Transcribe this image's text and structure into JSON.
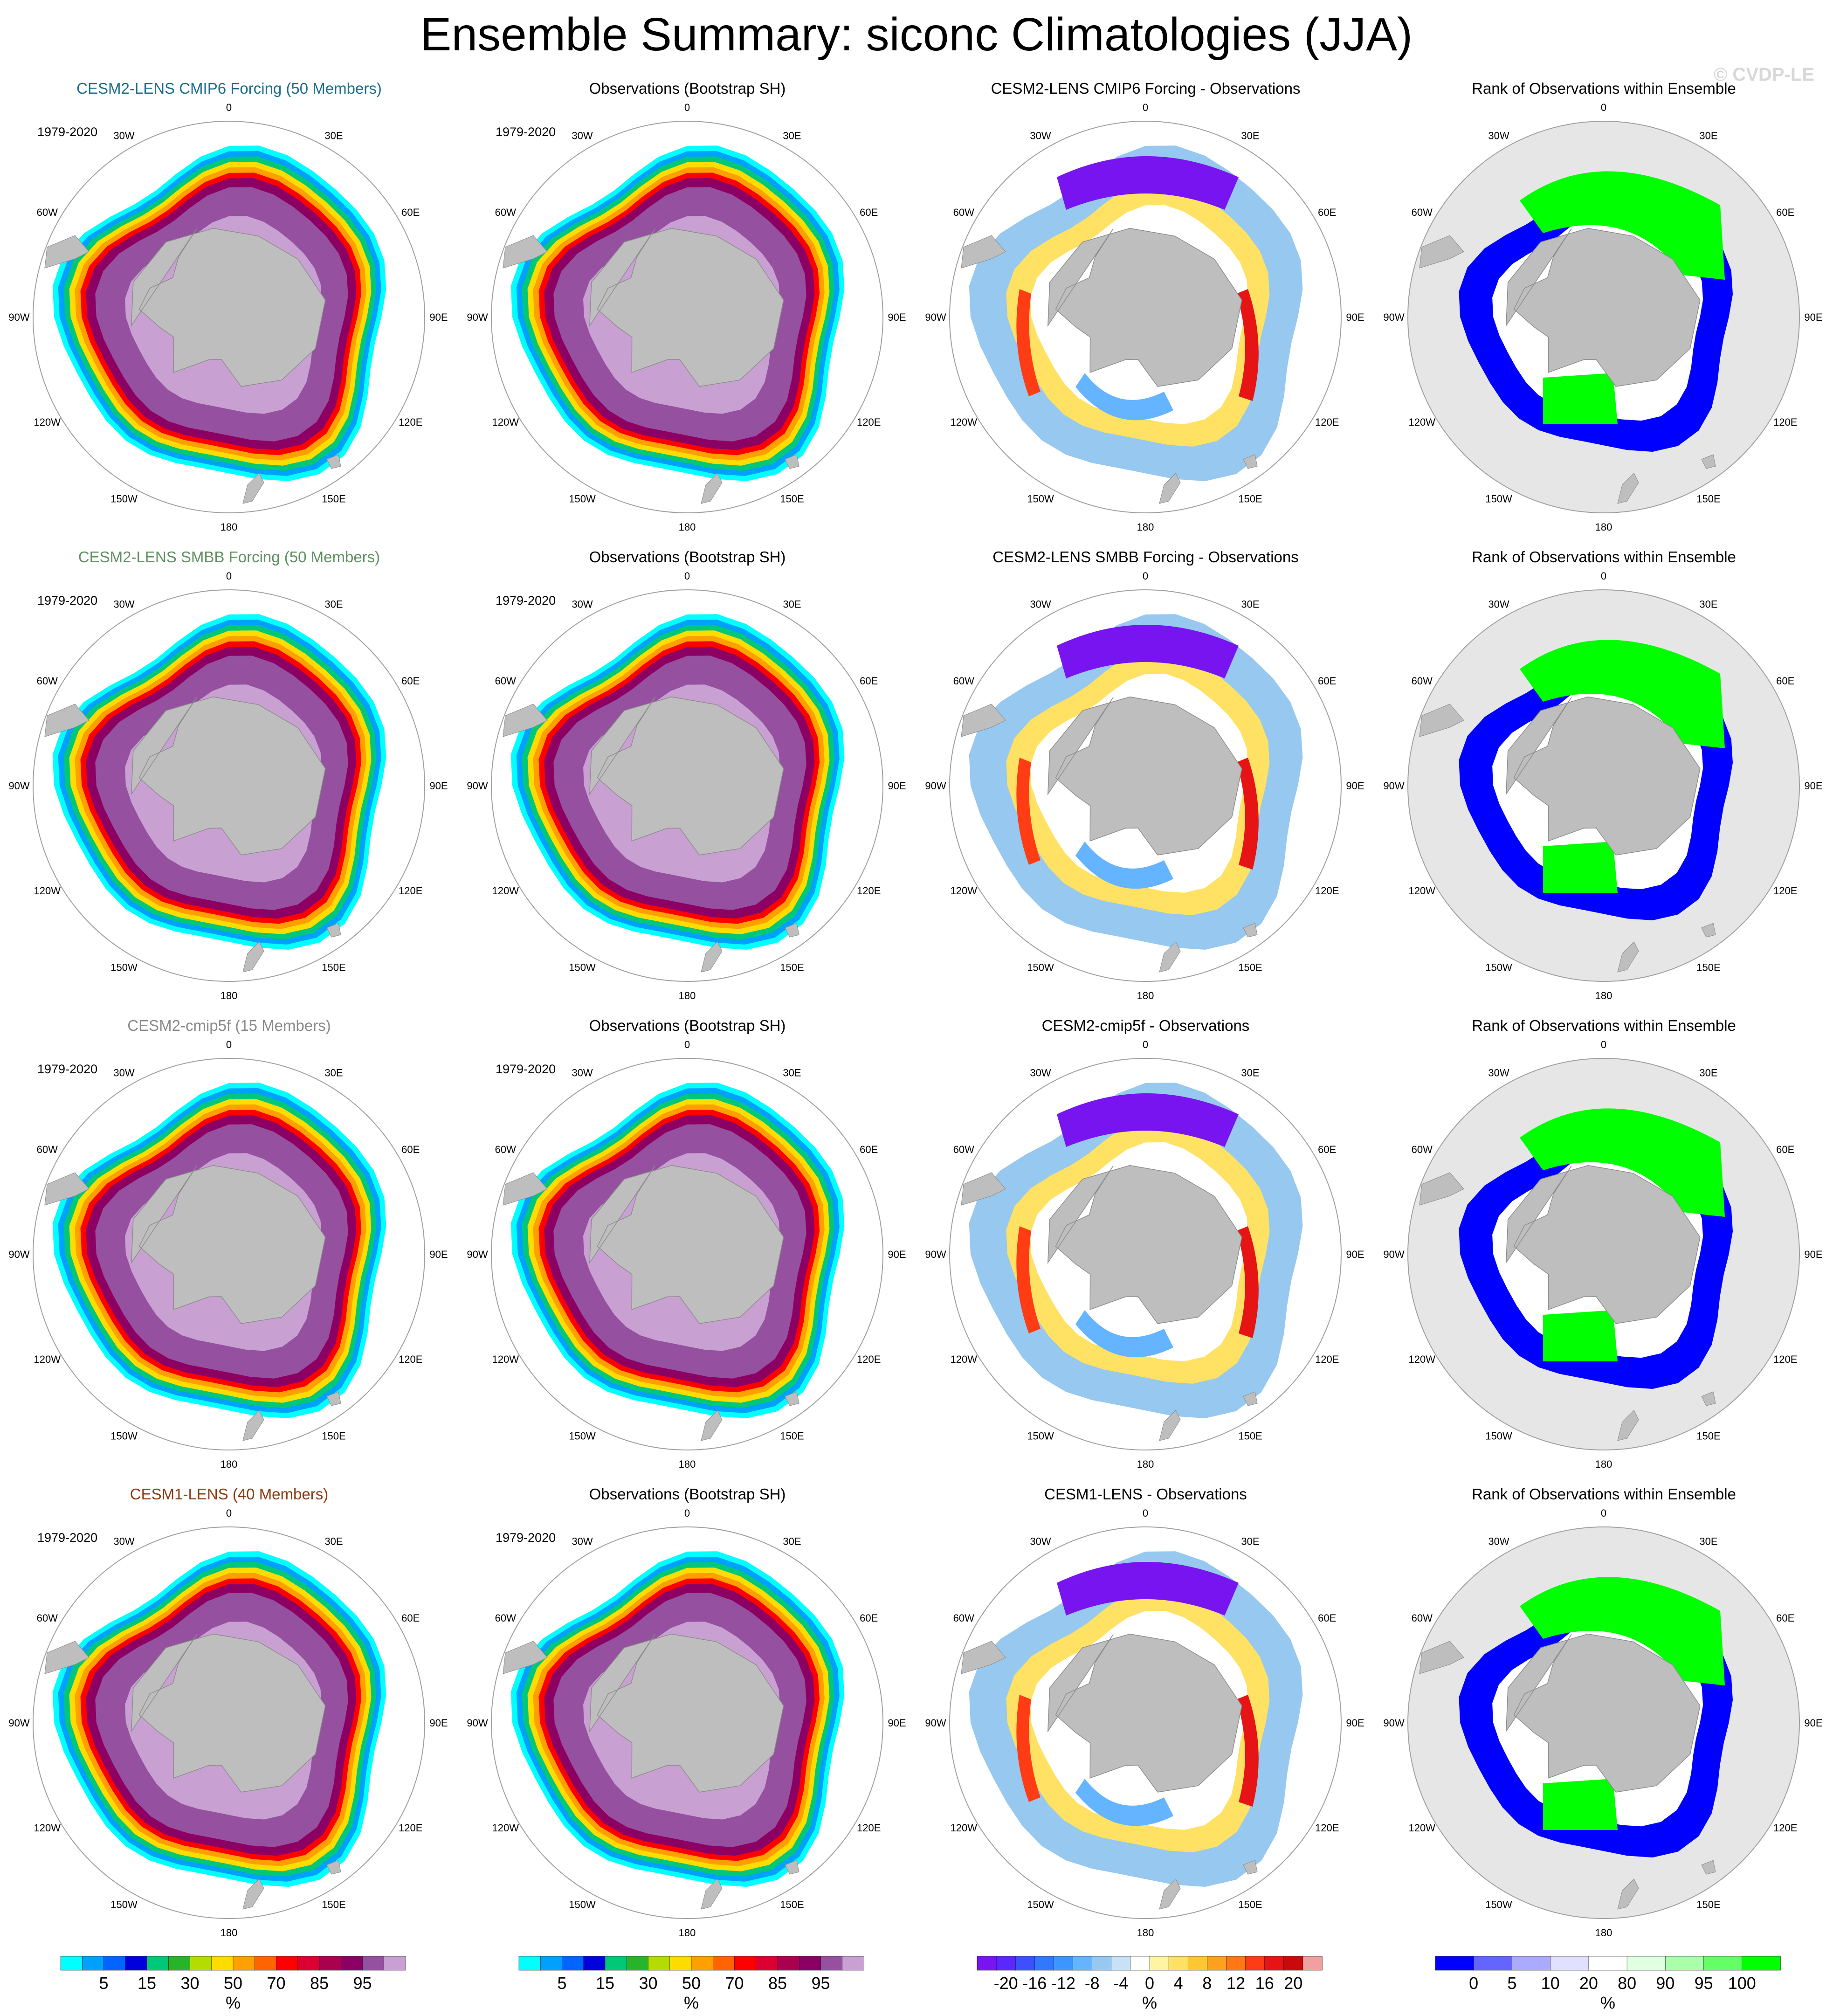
{
  "title": "Ensemble Summary: siconc Climatologies (JJA)",
  "watermark": "© CVDP-LE",
  "period": "1979-2020",
  "lon_labels": [
    "0",
    "30E",
    "60E",
    "90E",
    "120E",
    "150E",
    "180",
    "150W",
    "120W",
    "90W",
    "60W",
    "30W"
  ],
  "rows": [
    {
      "model_title": "CESM2-LENS CMIP6 Forcing (50 Members)",
      "model_color": "#1a6e8e",
      "obs_title": "Observations (Bootstrap SH)",
      "diff_title": "CESM2-LENS CMIP6 Forcing - Observations",
      "rank_title": "Rank of Observations within Ensemble"
    },
    {
      "model_title": "CESM2-LENS SMBB Forcing (50 Members)",
      "model_color": "#5f8f5f",
      "obs_title": "Observations (Bootstrap SH)",
      "diff_title": "CESM2-LENS SMBB Forcing - Observations",
      "rank_title": "Rank of Observations within Ensemble"
    },
    {
      "model_title": "CESM2-cmip5f (15 Members)",
      "model_color": "#8a8a8a",
      "obs_title": "Observations (Bootstrap SH)",
      "diff_title": "CESM2-cmip5f - Observations",
      "rank_title": "Rank of Observations within Ensemble"
    },
    {
      "model_title": "CESM1-LENS (40 Members)",
      "model_color": "#8b3a0e",
      "obs_title": "Observations (Bootstrap SH)",
      "diff_title": "CESM1-LENS - Observations",
      "rank_title": "Rank of Observations within Ensemble"
    }
  ],
  "colorbars": {
    "concentration": {
      "unit": "%",
      "labels": [
        "5",
        "15",
        "30",
        "50",
        "70",
        "85",
        "95"
      ],
      "colors": [
        "#00ffff",
        "#00a0ff",
        "#0064ff",
        "#0000dc",
        "#00c878",
        "#28b428",
        "#b4dc00",
        "#ffdc00",
        "#ffa000",
        "#ff6400",
        "#ff0000",
        "#dc0032",
        "#aa0050",
        "#8c0064",
        "#9650a0",
        "#c8a0d2"
      ]
    },
    "difference": {
      "unit": "%",
      "labels": [
        "-20",
        "-16",
        "-12",
        "-8",
        "-4",
        "0",
        "4",
        "8",
        "12",
        "16",
        "20"
      ],
      "colors": [
        "#7814f0",
        "#5a28ff",
        "#3c50ff",
        "#3278ff",
        "#3c96ff",
        "#64b4ff",
        "#96c8f0",
        "#c8e1f5",
        "#ffffff",
        "#fff5a0",
        "#ffe164",
        "#ffc832",
        "#ffa01e",
        "#ff7814",
        "#ff3c14",
        "#e61414",
        "#c80a0a",
        "#f0a0a0"
      ]
    },
    "rank": {
      "unit": "%",
      "labels": [
        "0",
        "5",
        "10",
        "20",
        "80",
        "90",
        "95",
        "100"
      ],
      "colors": [
        "#0000ff",
        "#6464ff",
        "#aaaaff",
        "#e1e1ff",
        "#ffffff",
        "#e1ffe1",
        "#aaffaa",
        "#64ff64",
        "#00ff00"
      ]
    }
  },
  "map_colors": {
    "land": "#bebebe",
    "rank_bg": "#e6e6e6",
    "circle": "#a0a0a0"
  }
}
